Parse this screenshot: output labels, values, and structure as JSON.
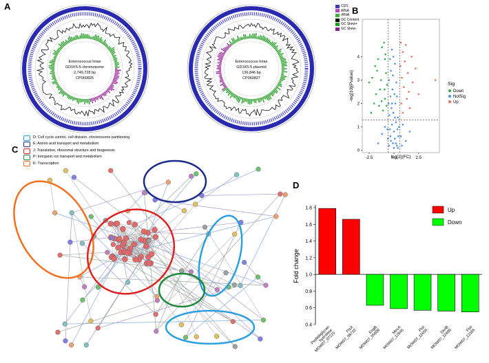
{
  "panels": {
    "A": {
      "label": "A",
      "legend": [
        {
          "name": "CDS",
          "color": "#3a3ab8"
        },
        {
          "name": "tRNA",
          "color": "#c040c0"
        },
        {
          "name": "rRNA",
          "color": "#40b040"
        },
        {
          "name": "GC Content",
          "color": "#000000"
        },
        {
          "name": "GC Skew+",
          "color": "#20a020"
        },
        {
          "name": "GC Skew-",
          "color": "#8a208a"
        }
      ],
      "chromosome": {
        "line1": "Enterococcus hirae",
        "line2": "GD1K5-5 chromosome",
        "line3": "2,749,728 bp",
        "line4": "CP060825"
      },
      "plasmid": {
        "line1": "Enterococcus hirae",
        "line2": "GD1K5-5 plasmid",
        "line3": "136,846 bp",
        "line4": "CP060827"
      }
    },
    "B": {
      "label": "B",
      "legend_title": "Sig",
      "legend": [
        {
          "name": "Down",
          "color": "#2ab04a"
        },
        {
          "name": "NotSig",
          "color": "#4a90e8"
        },
        {
          "name": "Up",
          "color": "#f06a5a"
        }
      ]
    },
    "C": {
      "label": "C",
      "legend": [
        {
          "name": "D: Cell cycle control, cell division, chromosome partitioning",
          "color": "#2a9fe0"
        },
        {
          "name": "E: Amino acid transport and metabolism",
          "color": "#1c2a8c"
        },
        {
          "name": "J: Translation, ribosomal structure and biogenesis",
          "color": "#e02020"
        },
        {
          "name": "P: Inorganic ion transport and metabolism",
          "color": "#1a8a3a"
        },
        {
          "name": "K: Transcription",
          "color": "#f07020"
        }
      ]
    },
    "D": {
      "label": "D",
      "legend": [
        {
          "name": "Up",
          "color": "#ff0000"
        },
        {
          "name": "Down",
          "color": "#00ff00"
        }
      ]
    }
  },
  "chart_data": [
    {
      "type": "scatter",
      "panel": "B",
      "xlabel": "log[2](FC)",
      "ylabel": "-log[10](Pvalue)",
      "xticks": [
        "-2.5",
        "0.0",
        "2.5"
      ],
      "yticks": [
        "0",
        "1",
        "2",
        "3",
        "4"
      ],
      "xlim": [
        -3.2,
        4.6
      ],
      "ylim": [
        -0.1,
        5.6
      ],
      "vlines": [
        -0.58,
        0.58
      ],
      "hline": 1.3,
      "series": [
        {
          "name": "Down",
          "color": "#2ab04a",
          "points": [
            [
              -2.2,
              3.1
            ],
            [
              -1.9,
              3.6
            ],
            [
              -1.6,
              3.9
            ],
            [
              -1.2,
              4.4
            ],
            [
              -1.0,
              4.6
            ],
            [
              -0.9,
              3.9
            ],
            [
              -1.8,
              2.4
            ],
            [
              -2.3,
              1.6
            ],
            [
              -1.3,
              3.0
            ],
            [
              -0.8,
              3.3
            ],
            [
              -1.5,
              1.9
            ],
            [
              -0.9,
              2.2
            ],
            [
              -0.7,
              2.8
            ],
            [
              -1.1,
              1.7
            ],
            [
              -2.0,
              2.0
            ],
            [
              -1.4,
              2.6
            ],
            [
              -0.75,
              1.9
            ],
            [
              -1.7,
              3.4
            ],
            [
              -0.85,
              4.1
            ],
            [
              -1.25,
              2.1
            ],
            [
              -2.5,
              2.9
            ],
            [
              -0.95,
              2.6
            ]
          ]
        },
        {
          "name": "NotSig",
          "color": "#4a90e8",
          "points": [
            [
              -0.5,
              0.2
            ],
            [
              -0.3,
              0.4
            ],
            [
              -0.1,
              0.3
            ],
            [
              0.1,
              0.5
            ],
            [
              0.3,
              0.2
            ],
            [
              0.45,
              0.6
            ],
            [
              -0.4,
              0.9
            ],
            [
              -0.2,
              1.1
            ],
            [
              0.0,
              0.8
            ],
            [
              0.2,
              1.2
            ],
            [
              0.35,
              0.9
            ],
            [
              -0.45,
              1.5
            ],
            [
              -0.25,
              1.8
            ],
            [
              -0.05,
              1.6
            ],
            [
              0.15,
              2.0
            ],
            [
              0.4,
              1.4
            ],
            [
              -0.35,
              2.3
            ],
            [
              -0.15,
              2.6
            ],
            [
              0.05,
              2.4
            ],
            [
              0.25,
              2.9
            ],
            [
              -0.5,
              3.0
            ],
            [
              -0.3,
              3.4
            ],
            [
              -0.1,
              3.2
            ],
            [
              0.1,
              3.7
            ],
            [
              -0.4,
              3.9
            ],
            [
              -0.2,
              4.3
            ],
            [
              0.0,
              0.1
            ],
            [
              -0.6,
              0.5
            ],
            [
              0.5,
              1.0
            ],
            [
              -0.55,
              2.0
            ],
            [
              0.3,
              2.3
            ],
            [
              -0.05,
              4.0
            ],
            [
              0.2,
              0.3
            ],
            [
              -0.35,
              0.6
            ],
            [
              0.1,
              1.4
            ],
            [
              -0.2,
              2.0
            ],
            [
              0.4,
              0.1
            ],
            [
              1.2,
              0.4
            ],
            [
              1.6,
              0.8
            ],
            [
              0.8,
              0.2
            ],
            [
              -1.2,
              0.7
            ],
            [
              -1.6,
              0.3
            ],
            [
              -0.9,
              1.0
            ],
            [
              0.9,
              1.1
            ],
            [
              -0.65,
              0.9
            ],
            [
              0.7,
              0.6
            ]
          ]
        },
        {
          "name": "Up",
          "color": "#f06a5a",
          "points": [
            [
              0.7,
              4.6
            ],
            [
              0.9,
              4.2
            ],
            [
              1.1,
              3.8
            ],
            [
              1.4,
              3.3
            ],
            [
              1.8,
              4.0
            ],
            [
              2.2,
              3.5
            ],
            [
              0.8,
              3.1
            ],
            [
              1.0,
              2.7
            ],
            [
              1.3,
              2.2
            ],
            [
              1.6,
              1.8
            ],
            [
              0.75,
              2.0
            ],
            [
              0.9,
              1.6
            ],
            [
              2.5,
              2.4
            ],
            [
              1.2,
              4.5
            ],
            [
              0.65,
              3.6
            ],
            [
              1.9,
              2.9
            ],
            [
              4.2,
              3.0
            ],
            [
              1.5,
              2.5
            ]
          ]
        }
      ]
    },
    {
      "type": "bar",
      "panel": "D",
      "ylabel": "Fold change",
      "ylim": [
        0.4,
        1.8
      ],
      "baseline": 1.0,
      "yticks": [
        "0.4",
        "0.6",
        "0.8",
        "1.0",
        "1.2",
        "1.4",
        "1.6",
        "1.8"
      ],
      "categories": [
        [
          "Peptidoglycan",
          "hydrolase",
          "MOW07_07215"
        ],
        [
          "FtsX",
          "MOW07_08710"
        ],
        [
          "EngB",
          "MOW07_05600"
        ],
        [
          "MecA",
          "MOW07_12845"
        ],
        [
          "FtsI",
          "MOW07_11655"
        ],
        [
          "DivIB",
          "MOW07_11660"
        ],
        [
          "FtsI",
          "MOW07_12355"
        ]
      ],
      "values": [
        1.79,
        1.66,
        0.63,
        0.59,
        0.57,
        0.56,
        0.55
      ],
      "groups": [
        "Up",
        "Up",
        "Down",
        "Down",
        "Down",
        "Down",
        "Down"
      ]
    }
  ]
}
